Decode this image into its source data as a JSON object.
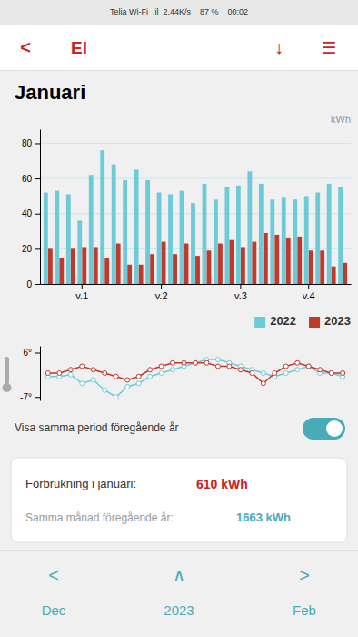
{
  "page": {
    "status_text": "Telia Wi-Fi  .il  2,44K/s    87 %    00:02",
    "header_back": "<",
    "header_title": "El",
    "header_download": "↓",
    "header_menu": "☰",
    "toggle_text": "Visa samma period föregående år",
    "consumption_label": "Förbrukning i januari:",
    "consumption_value": "610 kWh",
    "previous_label": "Samma månad föregående år:",
    "previous_value": "1663 kWh",
    "nav_arrows": [
      "<",
      "∧",
      ">"
    ],
    "nav_labels": [
      "Dec",
      "2023",
      "Feb"
    ]
  },
  "chart_data": [
    {
      "type": "bar",
      "title": "Januari",
      "ylabel": "kWh",
      "categories": [
        null,
        null,
        null,
        "v.1",
        null,
        null,
        null,
        null,
        null,
        null,
        "v.2",
        null,
        null,
        null,
        null,
        null,
        null,
        "v.3",
        null,
        null,
        null,
        null,
        null,
        "v.4",
        null,
        null,
        null
      ],
      "series": [
        {
          "name": "2022",
          "color": "#6dcad8",
          "values": [
            52,
            53,
            51,
            36,
            62,
            76,
            68,
            59,
            65,
            59,
            52,
            51,
            53,
            46,
            57,
            48,
            55,
            56,
            64,
            57,
            48,
            49,
            48,
            50,
            52,
            57,
            55
          ]
        },
        {
          "name": "2023",
          "color": "#c0392b",
          "values": [
            20,
            15,
            20,
            21,
            21,
            15,
            23,
            11,
            11,
            17,
            24,
            17,
            23,
            16,
            19,
            23,
            25,
            21,
            24,
            29,
            28,
            26,
            27,
            19,
            19,
            10,
            12
          ]
        }
      ],
      "ylim": [
        0,
        88
      ],
      "yticks": [
        0,
        20,
        40,
        60,
        80
      ],
      "grid": true,
      "legend": "bottom-right"
    },
    {
      "type": "line",
      "series": [
        {
          "color": "#6dcad8",
          "values": [
            -1,
            -1,
            -0.5,
            -3,
            -2,
            -5,
            -7,
            -4,
            -3,
            -1,
            0,
            1,
            2,
            3,
            4,
            4,
            3,
            2,
            1,
            0,
            -1,
            0,
            1,
            2,
            0,
            0,
            -1
          ]
        },
        {
          "color": "#c0392b",
          "values": [
            0,
            0,
            1,
            2,
            1,
            0,
            -1,
            -2,
            -1,
            1,
            2,
            3,
            3,
            3,
            3,
            2,
            2,
            1,
            0,
            -3,
            0,
            2,
            3,
            2,
            1,
            0,
            0
          ]
        }
      ],
      "ylim": [
        -8,
        8
      ],
      "yticks": [
        {
          "value": 6,
          "label": "6°"
        },
        {
          "value": -7,
          "label": "-7°"
        }
      ],
      "marker": "circle",
      "tick_labels": "y"
    }
  ]
}
